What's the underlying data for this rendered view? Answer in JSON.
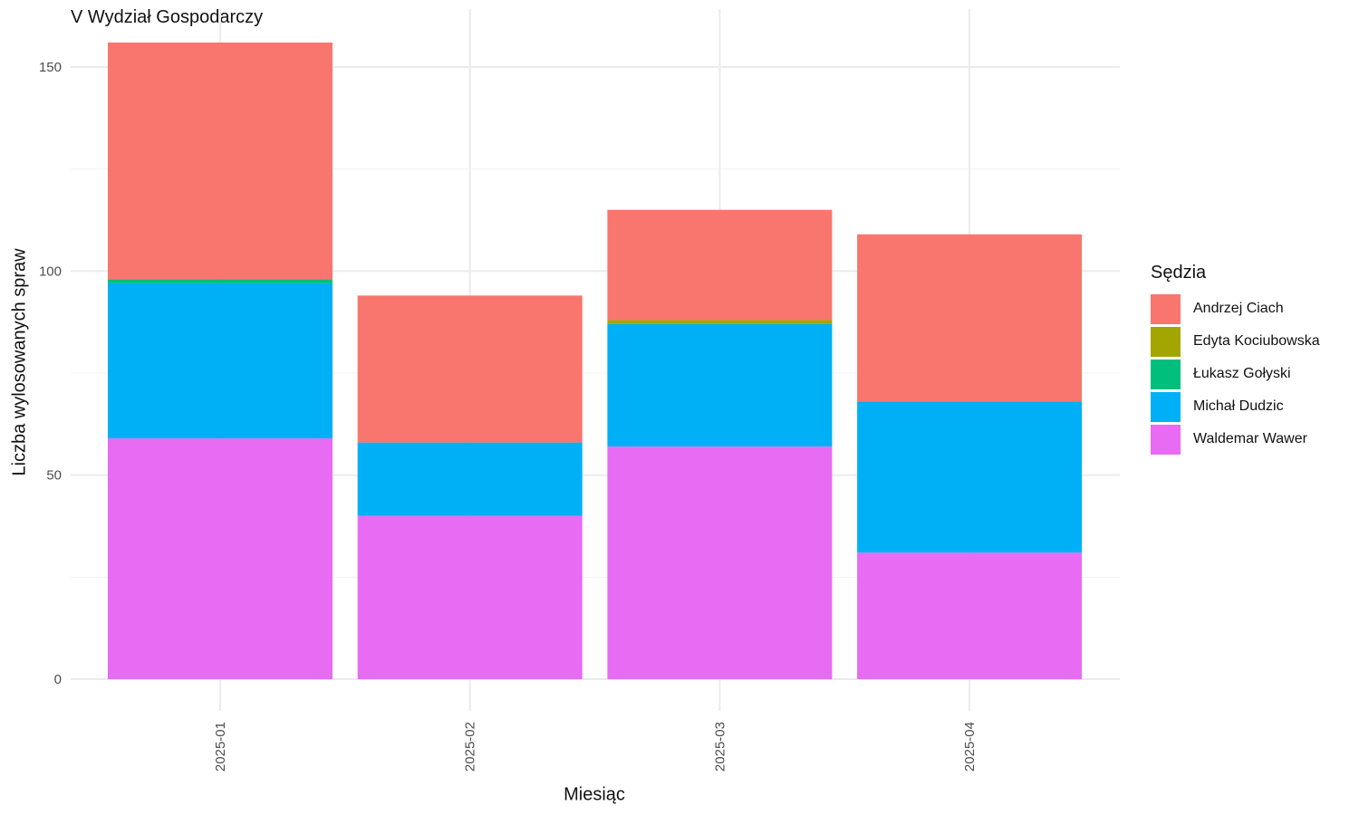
{
  "chart_data": {
    "type": "bar",
    "stacked": true,
    "title": "V Wydział Gospodarczy",
    "xlabel": "Miesiąc",
    "ylabel": "Liczba wylosowanych spraw",
    "ylim": [
      0,
      160
    ],
    "yticks": [
      0,
      50,
      100,
      150
    ],
    "grid": true,
    "legend_title": "Sędzia",
    "legend_position": "right",
    "categories": [
      "2025-01",
      "2025-02",
      "2025-03",
      "2025-04"
    ],
    "series": [
      {
        "name": "Waldemar Wawer",
        "color": "#E76BF3",
        "values": [
          59,
          40,
          57,
          31
        ]
      },
      {
        "name": "Michał Dudzic",
        "color": "#00B0F6",
        "values": [
          38,
          18,
          30,
          37
        ]
      },
      {
        "name": "Łukasz Gołyski",
        "color": "#00BF7D",
        "values": [
          1,
          0,
          0,
          0
        ]
      },
      {
        "name": "Edyta Kociubowska",
        "color": "#A3A500",
        "values": [
          0,
          0,
          1,
          0
        ]
      },
      {
        "name": "Andrzej Ciach",
        "color": "#F8766D",
        "values": [
          58,
          36,
          27,
          41
        ]
      }
    ],
    "legend_order": [
      "Andrzej Ciach",
      "Edyta Kociubowska",
      "Łukasz Gołyski",
      "Michał Dudzic",
      "Waldemar Wawer"
    ]
  }
}
